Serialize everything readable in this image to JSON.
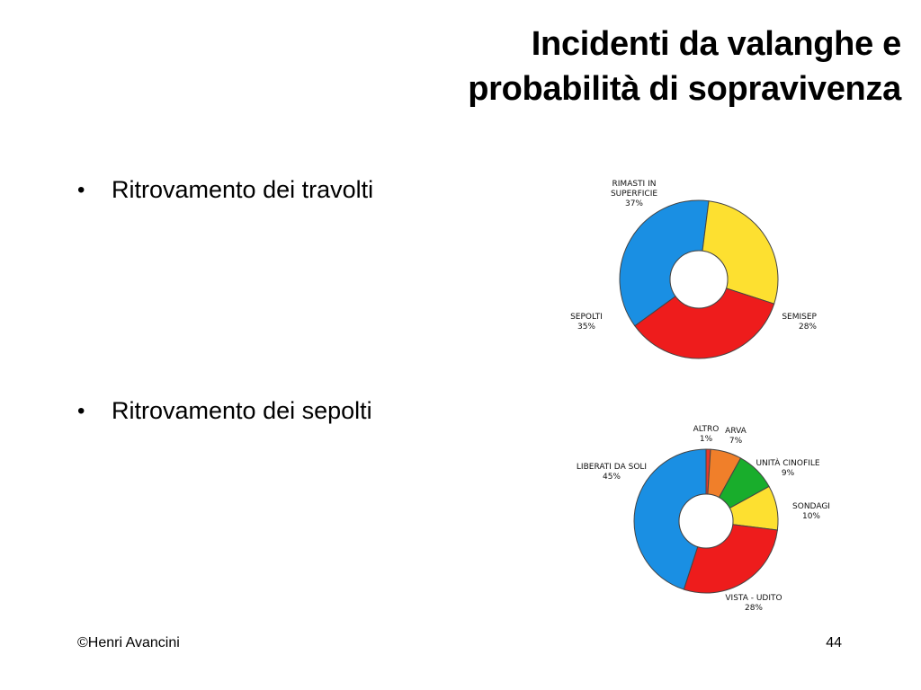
{
  "title": {
    "line1": "Incidenti da valanghe e",
    "line2": "probabilità di sopravivenza"
  },
  "bullets": [
    {
      "marker": "•",
      "text": "Ritrovamento dei travolti"
    },
    {
      "marker": "•",
      "text": "Ritrovamento dei sepolti"
    }
  ],
  "footer": {
    "copyright": "©Henri Avancini",
    "page_number": "44"
  },
  "chart_data": [
    {
      "type": "pie",
      "hole": true,
      "slices": [
        {
          "label_lines": [
            "RIMASTI IN",
            "SUPERFICIE"
          ],
          "value_label": "37%",
          "value": 37,
          "color": "#1a8fe3"
        },
        {
          "label_lines": [
            "SEMISEP"
          ],
          "value_label": "28%",
          "value": 28,
          "color": "#fde030"
        },
        {
          "label_lines": [
            "SEPOLTI"
          ],
          "value_label": "35%",
          "value": 35,
          "color": "#ee1c1c"
        }
      ]
    },
    {
      "type": "pie",
      "hole": true,
      "slices": [
        {
          "label_lines": [
            "ALTRO"
          ],
          "value_label": "1%",
          "value": 1,
          "color": "#e8392b"
        },
        {
          "label_lines": [
            "ARVA"
          ],
          "value_label": "7%",
          "value": 7,
          "color": "#f07f2a"
        },
        {
          "label_lines": [
            "UNITÀ CINOFILE"
          ],
          "value_label": "9%",
          "value": 9,
          "color": "#19ad2c"
        },
        {
          "label_lines": [
            "SONDAGI"
          ],
          "value_label": "10%",
          "value": 10,
          "color": "#fde030"
        },
        {
          "label_lines": [
            "VISTA - UDITO"
          ],
          "value_label": "28%",
          "value": 28,
          "color": "#ee1c1c"
        },
        {
          "label_lines": [
            "LIBERATI DA SOLI"
          ],
          "value_label": "45%",
          "value": 45,
          "color": "#1a8fe3"
        }
      ]
    }
  ]
}
